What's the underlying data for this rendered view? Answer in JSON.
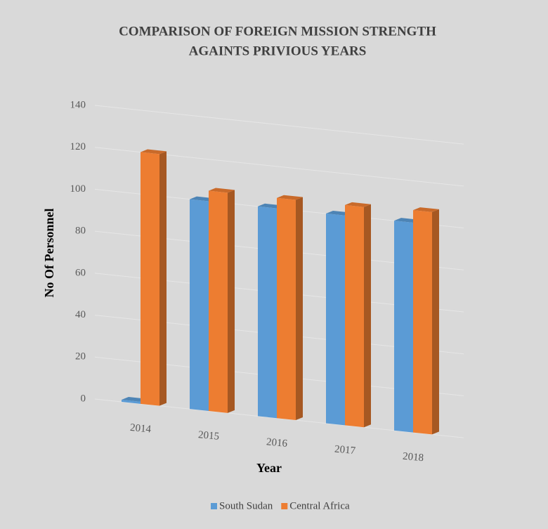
{
  "chart_data": {
    "type": "bar3d",
    "title": "COMPARISON OF FOREIGN MISSION STRENGTH",
    "subtitle": "AGAINTS PRIVIOUS YEARS",
    "x_label": "Year",
    "y_label": "No Of Personnel",
    "categories": [
      "2014",
      "2015",
      "2016",
      "2017",
      "2018"
    ],
    "series": [
      {
        "name": "South Sudan",
        "color": "#5b9bd5",
        "values": [
          1,
          100,
          100,
          100,
          100
        ]
      },
      {
        "name": "Central Africa",
        "color": "#ed7d31",
        "values": [
          120,
          105,
          105,
          105,
          106
        ]
      }
    ],
    "ylim": [
      0,
      140
    ],
    "yticks": [
      0,
      20,
      40,
      60,
      80,
      100,
      120,
      140
    ],
    "grid": true
  }
}
